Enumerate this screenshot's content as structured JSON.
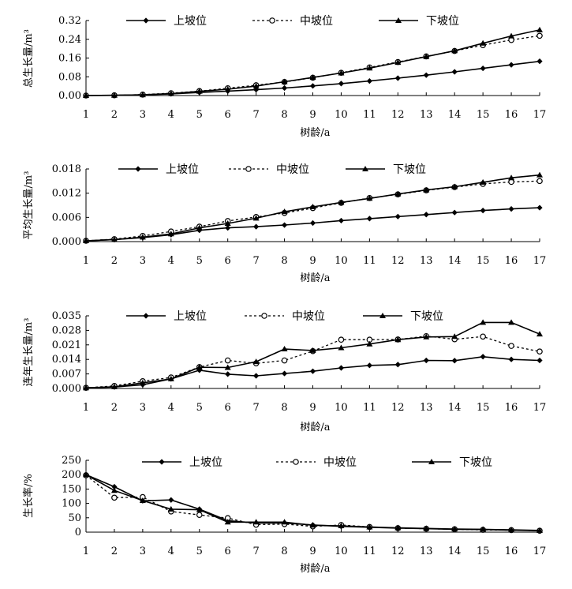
{
  "chart_data": [
    {
      "type": "line",
      "title": "",
      "ylabel": "总生长量/m³",
      "xlabel": "树龄/a",
      "ylim": [
        0,
        0.32
      ],
      "yticks": [
        "0.00",
        "0.08",
        "0.16",
        "0.24",
        "0.32"
      ],
      "x": [
        1,
        2,
        3,
        4,
        5,
        6,
        7,
        8,
        9,
        10,
        11,
        12,
        13,
        14,
        15,
        16,
        17
      ],
      "legend": [
        "上坡位",
        "中坡位",
        "下坡位"
      ],
      "series": [
        {
          "name": "上坡位",
          "values": [
            0,
            0.001,
            0.003,
            0.007,
            0.013,
            0.019,
            0.025,
            0.032,
            0.041,
            0.051,
            0.062,
            0.074,
            0.087,
            0.101,
            0.116,
            0.131,
            0.146
          ]
        },
        {
          "name": "中坡位",
          "values": [
            0,
            0.001,
            0.004,
            0.01,
            0.019,
            0.031,
            0.044,
            0.058,
            0.076,
            0.097,
            0.12,
            0.143,
            0.167,
            0.19,
            0.215,
            0.237,
            0.255
          ]
        },
        {
          "name": "下坡位",
          "values": [
            0,
            0.001,
            0.003,
            0.008,
            0.018,
            0.027,
            0.04,
            0.059,
            0.077,
            0.096,
            0.117,
            0.141,
            0.166,
            0.191,
            0.223,
            0.254,
            0.28
          ]
        }
      ]
    },
    {
      "type": "line",
      "title": "",
      "ylabel": "平均生长量/m³",
      "xlabel": "树龄/a",
      "ylim": [
        0,
        0.018
      ],
      "yticks": [
        "0.000",
        "0.006",
        "0.012",
        "0.018"
      ],
      "x": [
        1,
        2,
        3,
        4,
        5,
        6,
        7,
        8,
        9,
        10,
        11,
        12,
        13,
        14,
        15,
        16,
        17
      ],
      "legend": [
        "上坡位",
        "中坡位",
        "下坡位"
      ],
      "series": [
        {
          "name": "上坡位",
          "values": [
            0.0002,
            0.0005,
            0.001,
            0.0017,
            0.0028,
            0.0034,
            0.0037,
            0.0041,
            0.0046,
            0.0052,
            0.0057,
            0.0062,
            0.0067,
            0.0072,
            0.0077,
            0.0081,
            0.0084
          ]
        },
        {
          "name": "中坡位",
          "values": [
            0.0002,
            0.0006,
            0.0014,
            0.0025,
            0.0037,
            0.0051,
            0.0061,
            0.0071,
            0.0083,
            0.0096,
            0.0108,
            0.0117,
            0.0127,
            0.0135,
            0.0143,
            0.0148,
            0.015
          ]
        },
        {
          "name": "下坡位",
          "values": [
            0.0002,
            0.0005,
            0.0011,
            0.0019,
            0.0034,
            0.0045,
            0.0058,
            0.0074,
            0.0086,
            0.0097,
            0.0107,
            0.0118,
            0.0128,
            0.0136,
            0.0147,
            0.0158,
            0.0165
          ]
        }
      ]
    },
    {
      "type": "line",
      "title": "",
      "ylabel": "连年生长量/m³",
      "xlabel": "树龄/a",
      "ylim": [
        0,
        0.035
      ],
      "yticks": [
        "0.000",
        "0.007",
        "0.014",
        "0.021",
        "0.028",
        "0.035"
      ],
      "x": [
        1,
        2,
        3,
        4,
        5,
        6,
        7,
        8,
        9,
        10,
        11,
        12,
        13,
        14,
        15,
        16,
        17
      ],
      "legend": [
        "上坡位",
        "中坡位",
        "下坡位"
      ],
      "series": [
        {
          "name": "上坡位",
          "values": [
            0.0003,
            0.0007,
            0.0018,
            0.0046,
            0.0088,
            0.0069,
            0.0061,
            0.0072,
            0.0083,
            0.0099,
            0.0111,
            0.0115,
            0.0135,
            0.0134,
            0.0153,
            0.014,
            0.0135
          ]
        },
        {
          "name": "中坡位",
          "values": [
            0.0003,
            0.0012,
            0.0035,
            0.0053,
            0.0103,
            0.0135,
            0.0121,
            0.0135,
            0.018,
            0.0235,
            0.0235,
            0.0236,
            0.0252,
            0.0237,
            0.025,
            0.0205,
            0.0178
          ]
        },
        {
          "name": "下坡位",
          "values": [
            0.0003,
            0.0008,
            0.0027,
            0.0046,
            0.0102,
            0.0101,
            0.0129,
            0.019,
            0.0183,
            0.0196,
            0.0214,
            0.0235,
            0.0248,
            0.025,
            0.0318,
            0.0318,
            0.0262
          ]
        }
      ]
    },
    {
      "type": "line",
      "title": "",
      "ylabel": "生长率/%",
      "xlabel": "树龄/a",
      "ylim": [
        0,
        250
      ],
      "yticks": [
        "0",
        "50",
        "100",
        "150",
        "200",
        "250"
      ],
      "x": [
        1,
        2,
        3,
        4,
        5,
        6,
        7,
        8,
        9,
        10,
        11,
        12,
        13,
        14,
        15,
        16,
        17
      ],
      "legend": [
        "上坡位",
        "中坡位",
        "下坡位"
      ],
      "series": [
        {
          "name": "上坡位",
          "values": [
            200,
            158,
            109,
            112,
            80,
            40,
            32,
            32,
            25,
            20,
            17,
            14,
            12,
            10,
            9,
            7,
            5
          ]
        },
        {
          "name": "中坡位",
          "values": [
            198,
            120,
            122,
            72,
            60,
            49,
            26,
            28,
            20,
            25,
            18,
            14,
            12,
            10,
            8,
            7,
            5
          ]
        },
        {
          "name": "下坡位",
          "values": [
            200,
            145,
            110,
            80,
            78,
            35,
            35,
            35,
            24,
            22,
            18,
            15,
            13,
            11,
            10,
            8,
            6
          ]
        }
      ]
    }
  ]
}
